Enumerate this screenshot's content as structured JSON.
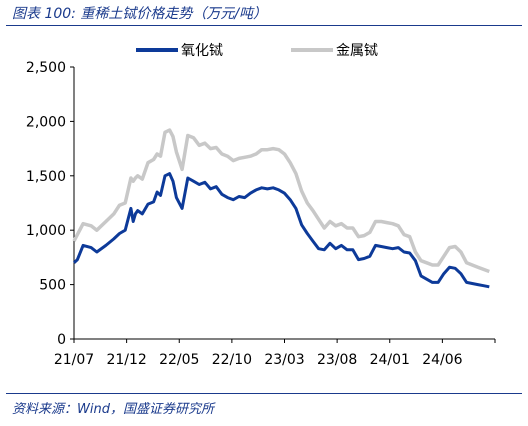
{
  "header": {
    "title": "图表 100:  重稀土铽价格走势（万元/吨）"
  },
  "footer": {
    "source": "资料来源：Wind，国盛证券研究所"
  },
  "colors": {
    "oxide": "#0d3a99",
    "metal": "#c8c8c8",
    "accent": "#1a3a8c"
  },
  "chart_data": {
    "type": "line",
    "title": "图表 100:  重稀土铽价格走势（万元/吨）",
    "xlabel": "",
    "ylabel": "",
    "x_ticks": [
      "21/07",
      "21/12",
      "22/05",
      "22/10",
      "23/03",
      "23/08",
      "24/01",
      "24/06"
    ],
    "xlim": [
      0,
      37
    ],
    "ylim": [
      0,
      2500
    ],
    "y_ticks": [
      0,
      500,
      1000,
      1500,
      2000,
      2500
    ],
    "y_tick_labels": [
      "0",
      "500",
      "1,000",
      "1,500",
      "2,000",
      "2,500"
    ],
    "grid": false,
    "legend_position": "top",
    "series": [
      {
        "name": "氧化铽",
        "color": "#0d3a99",
        "x": [
          0,
          0.3,
          0.8,
          1.5,
          2.0,
          2.8,
          3.5,
          4.0,
          4.5,
          5.0,
          5.2,
          5.4,
          5.6,
          6.0,
          6.5,
          7.0,
          7.3,
          7.6,
          8.0,
          8.4,
          8.7,
          9.0,
          9.5,
          10.0,
          10.5,
          11.0,
          11.5,
          12.0,
          12.5,
          13.0,
          13.5,
          14.0,
          14.5,
          15.0,
          15.5,
          16.0,
          16.5,
          17.0,
          17.5,
          18.0,
          18.5,
          19.0,
          19.5,
          20.0,
          20.5,
          21.0,
          21.5,
          22.0,
          22.5,
          23.0,
          23.5,
          24.0,
          24.5,
          25.0,
          25.5,
          26.0,
          26.5,
          27.0,
          27.5,
          28.0,
          28.5,
          29.0,
          29.5,
          30.0,
          30.5,
          31.0,
          31.5,
          32.0,
          32.5,
          33.0,
          33.5,
          34.0,
          34.5,
          35.0,
          35.5,
          36.0,
          36.5
        ],
        "y": [
          700,
          730,
          860,
          840,
          800,
          860,
          920,
          970,
          1000,
          1200,
          1080,
          1150,
          1180,
          1150,
          1240,
          1260,
          1350,
          1320,
          1500,
          1520,
          1450,
          1300,
          1200,
          1480,
          1450,
          1420,
          1440,
          1380,
          1400,
          1330,
          1300,
          1280,
          1310,
          1300,
          1340,
          1370,
          1390,
          1380,
          1390,
          1370,
          1340,
          1280,
          1200,
          1050,
          970,
          900,
          830,
          820,
          880,
          830,
          860,
          820,
          820,
          730,
          740,
          760,
          860,
          850,
          840,
          830,
          840,
          800,
          790,
          720,
          580,
          550,
          520,
          520,
          600,
          660,
          650,
          600,
          520,
          510,
          500,
          490,
          480
        ]
      },
      {
        "name": "金属铽",
        "color": "#c8c8c8",
        "x": [
          0,
          0.3,
          0.8,
          1.5,
          2.0,
          2.8,
          3.5,
          4.0,
          4.5,
          5.0,
          5.2,
          5.4,
          5.6,
          6.0,
          6.5,
          7.0,
          7.3,
          7.6,
          8.0,
          8.4,
          8.7,
          9.0,
          9.5,
          10.0,
          10.5,
          11.0,
          11.5,
          12.0,
          12.5,
          13.0,
          13.5,
          14.0,
          14.5,
          15.0,
          15.5,
          16.0,
          16.5,
          17.0,
          17.5,
          18.0,
          18.5,
          19.0,
          19.5,
          20.0,
          20.5,
          21.0,
          21.5,
          22.0,
          22.5,
          23.0,
          23.5,
          24.0,
          24.5,
          25.0,
          25.5,
          26.0,
          26.5,
          27.0,
          27.5,
          28.0,
          28.5,
          29.0,
          29.5,
          30.0,
          30.5,
          31.0,
          31.5,
          32.0,
          32.5,
          33.0,
          33.5,
          34.0,
          34.5,
          35.0,
          35.5,
          36.0,
          36.5
        ],
        "y": [
          900,
          960,
          1060,
          1040,
          1000,
          1080,
          1150,
          1230,
          1250,
          1480,
          1450,
          1480,
          1500,
          1470,
          1620,
          1650,
          1700,
          1680,
          1900,
          1920,
          1860,
          1720,
          1560,
          1870,
          1850,
          1780,
          1800,
          1750,
          1760,
          1700,
          1680,
          1640,
          1660,
          1670,
          1680,
          1700,
          1740,
          1740,
          1750,
          1740,
          1700,
          1620,
          1520,
          1360,
          1250,
          1180,
          1100,
          1020,
          1080,
          1040,
          1060,
          1020,
          1020,
          940,
          950,
          980,
          1080,
          1080,
          1070,
          1060,
          1040,
          960,
          940,
          800,
          720,
          700,
          680,
          680,
          760,
          840,
          850,
          800,
          700,
          680,
          660,
          640,
          620
        ]
      }
    ]
  }
}
